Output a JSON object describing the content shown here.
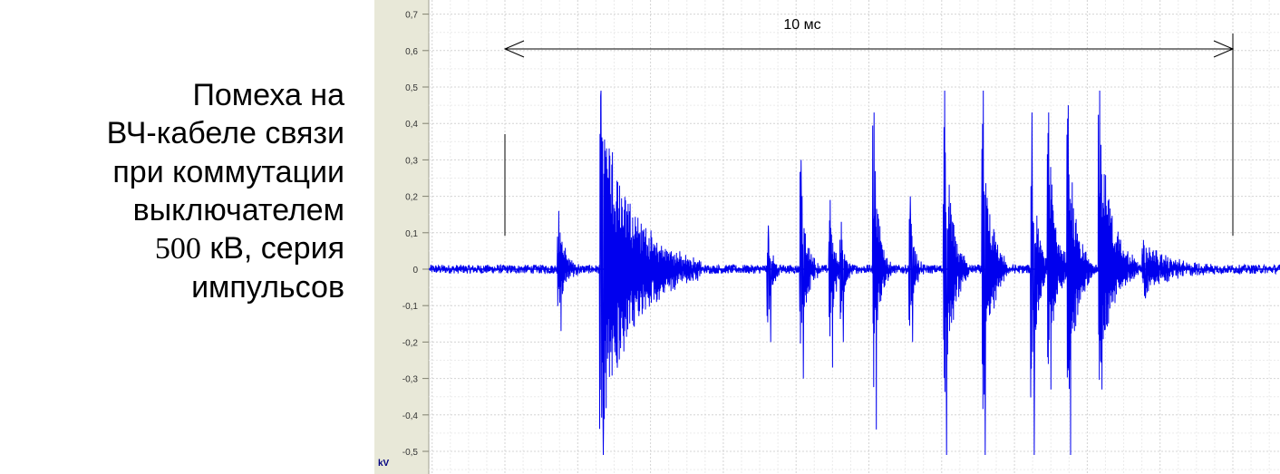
{
  "caption": {
    "line1": "Помеха на",
    "line2": "ВЧ-кабеле связи",
    "line3": "при коммутации",
    "line4": "выключателем",
    "line5_num": "500",
    "line5_rest": " кВ, серия",
    "line6": "импульсов"
  },
  "chart_data": {
    "type": "line",
    "ylabel": "kV",
    "ylim": [
      -0.55,
      0.75
    ],
    "yticks": [
      "0,7",
      "0,6",
      "0,5",
      "0,4",
      "0,3",
      "0,2",
      "0,1",
      "0",
      "-0,1",
      "-0,2",
      "-0,3",
      "-0,4",
      "-0,5"
    ],
    "ytick_values": [
      0.7,
      0.6,
      0.5,
      0.4,
      0.3,
      0.2,
      0.1,
      0,
      -0.1,
      -0.2,
      -0.3,
      -0.4,
      -0.5
    ],
    "grid": true,
    "xlim_ms": [
      -1.03,
      10.65
    ],
    "annotation": {
      "label": "10 мс",
      "from_ms": 0,
      "to_ms": 10
    },
    "series_color": "#0000ee",
    "noise_amplitude_kV": 0.012,
    "bursts": [
      {
        "t_ms": 0.72,
        "dur_ms": 0.3,
        "peak_pos_kV": 0.16,
        "peak_neg_kV": -0.17
      },
      {
        "t_ms": 1.3,
        "dur_ms": 1.4,
        "peak_pos_kV": 0.49,
        "peak_neg_kV": -0.51
      },
      {
        "t_ms": 3.6,
        "dur_ms": 0.2,
        "peak_pos_kV": 0.12,
        "peak_neg_kV": -0.2
      },
      {
        "t_ms": 4.05,
        "dur_ms": 0.25,
        "peak_pos_kV": 0.3,
        "peak_neg_kV": -0.3
      },
      {
        "t_ms": 4.45,
        "dur_ms": 0.2,
        "peak_pos_kV": 0.19,
        "peak_neg_kV": -0.27
      },
      {
        "t_ms": 4.6,
        "dur_ms": 0.2,
        "peak_pos_kV": 0.13,
        "peak_neg_kV": -0.2
      },
      {
        "t_ms": 5.05,
        "dur_ms": 0.25,
        "peak_pos_kV": 0.43,
        "peak_neg_kV": -0.44
      },
      {
        "t_ms": 5.55,
        "dur_ms": 0.2,
        "peak_pos_kV": 0.2,
        "peak_neg_kV": -0.2
      },
      {
        "t_ms": 6.02,
        "dur_ms": 0.35,
        "peak_pos_kV": 0.49,
        "peak_neg_kV": -0.51
      },
      {
        "t_ms": 6.55,
        "dur_ms": 0.35,
        "peak_pos_kV": 0.49,
        "peak_neg_kV": -0.51
      },
      {
        "t_ms": 7.22,
        "dur_ms": 0.25,
        "peak_pos_kV": 0.43,
        "peak_neg_kV": -0.51
      },
      {
        "t_ms": 7.45,
        "dur_ms": 0.35,
        "peak_pos_kV": 0.43,
        "peak_neg_kV": -0.33
      },
      {
        "t_ms": 7.72,
        "dur_ms": 0.35,
        "peak_pos_kV": 0.45,
        "peak_neg_kV": -0.51
      },
      {
        "t_ms": 8.15,
        "dur_ms": 0.55,
        "peak_pos_kV": 0.49,
        "peak_neg_kV": -0.33
      },
      {
        "t_ms": 8.75,
        "dur_ms": 1.1,
        "peak_pos_kV": 0.08,
        "peak_neg_kV": -0.08
      }
    ]
  }
}
